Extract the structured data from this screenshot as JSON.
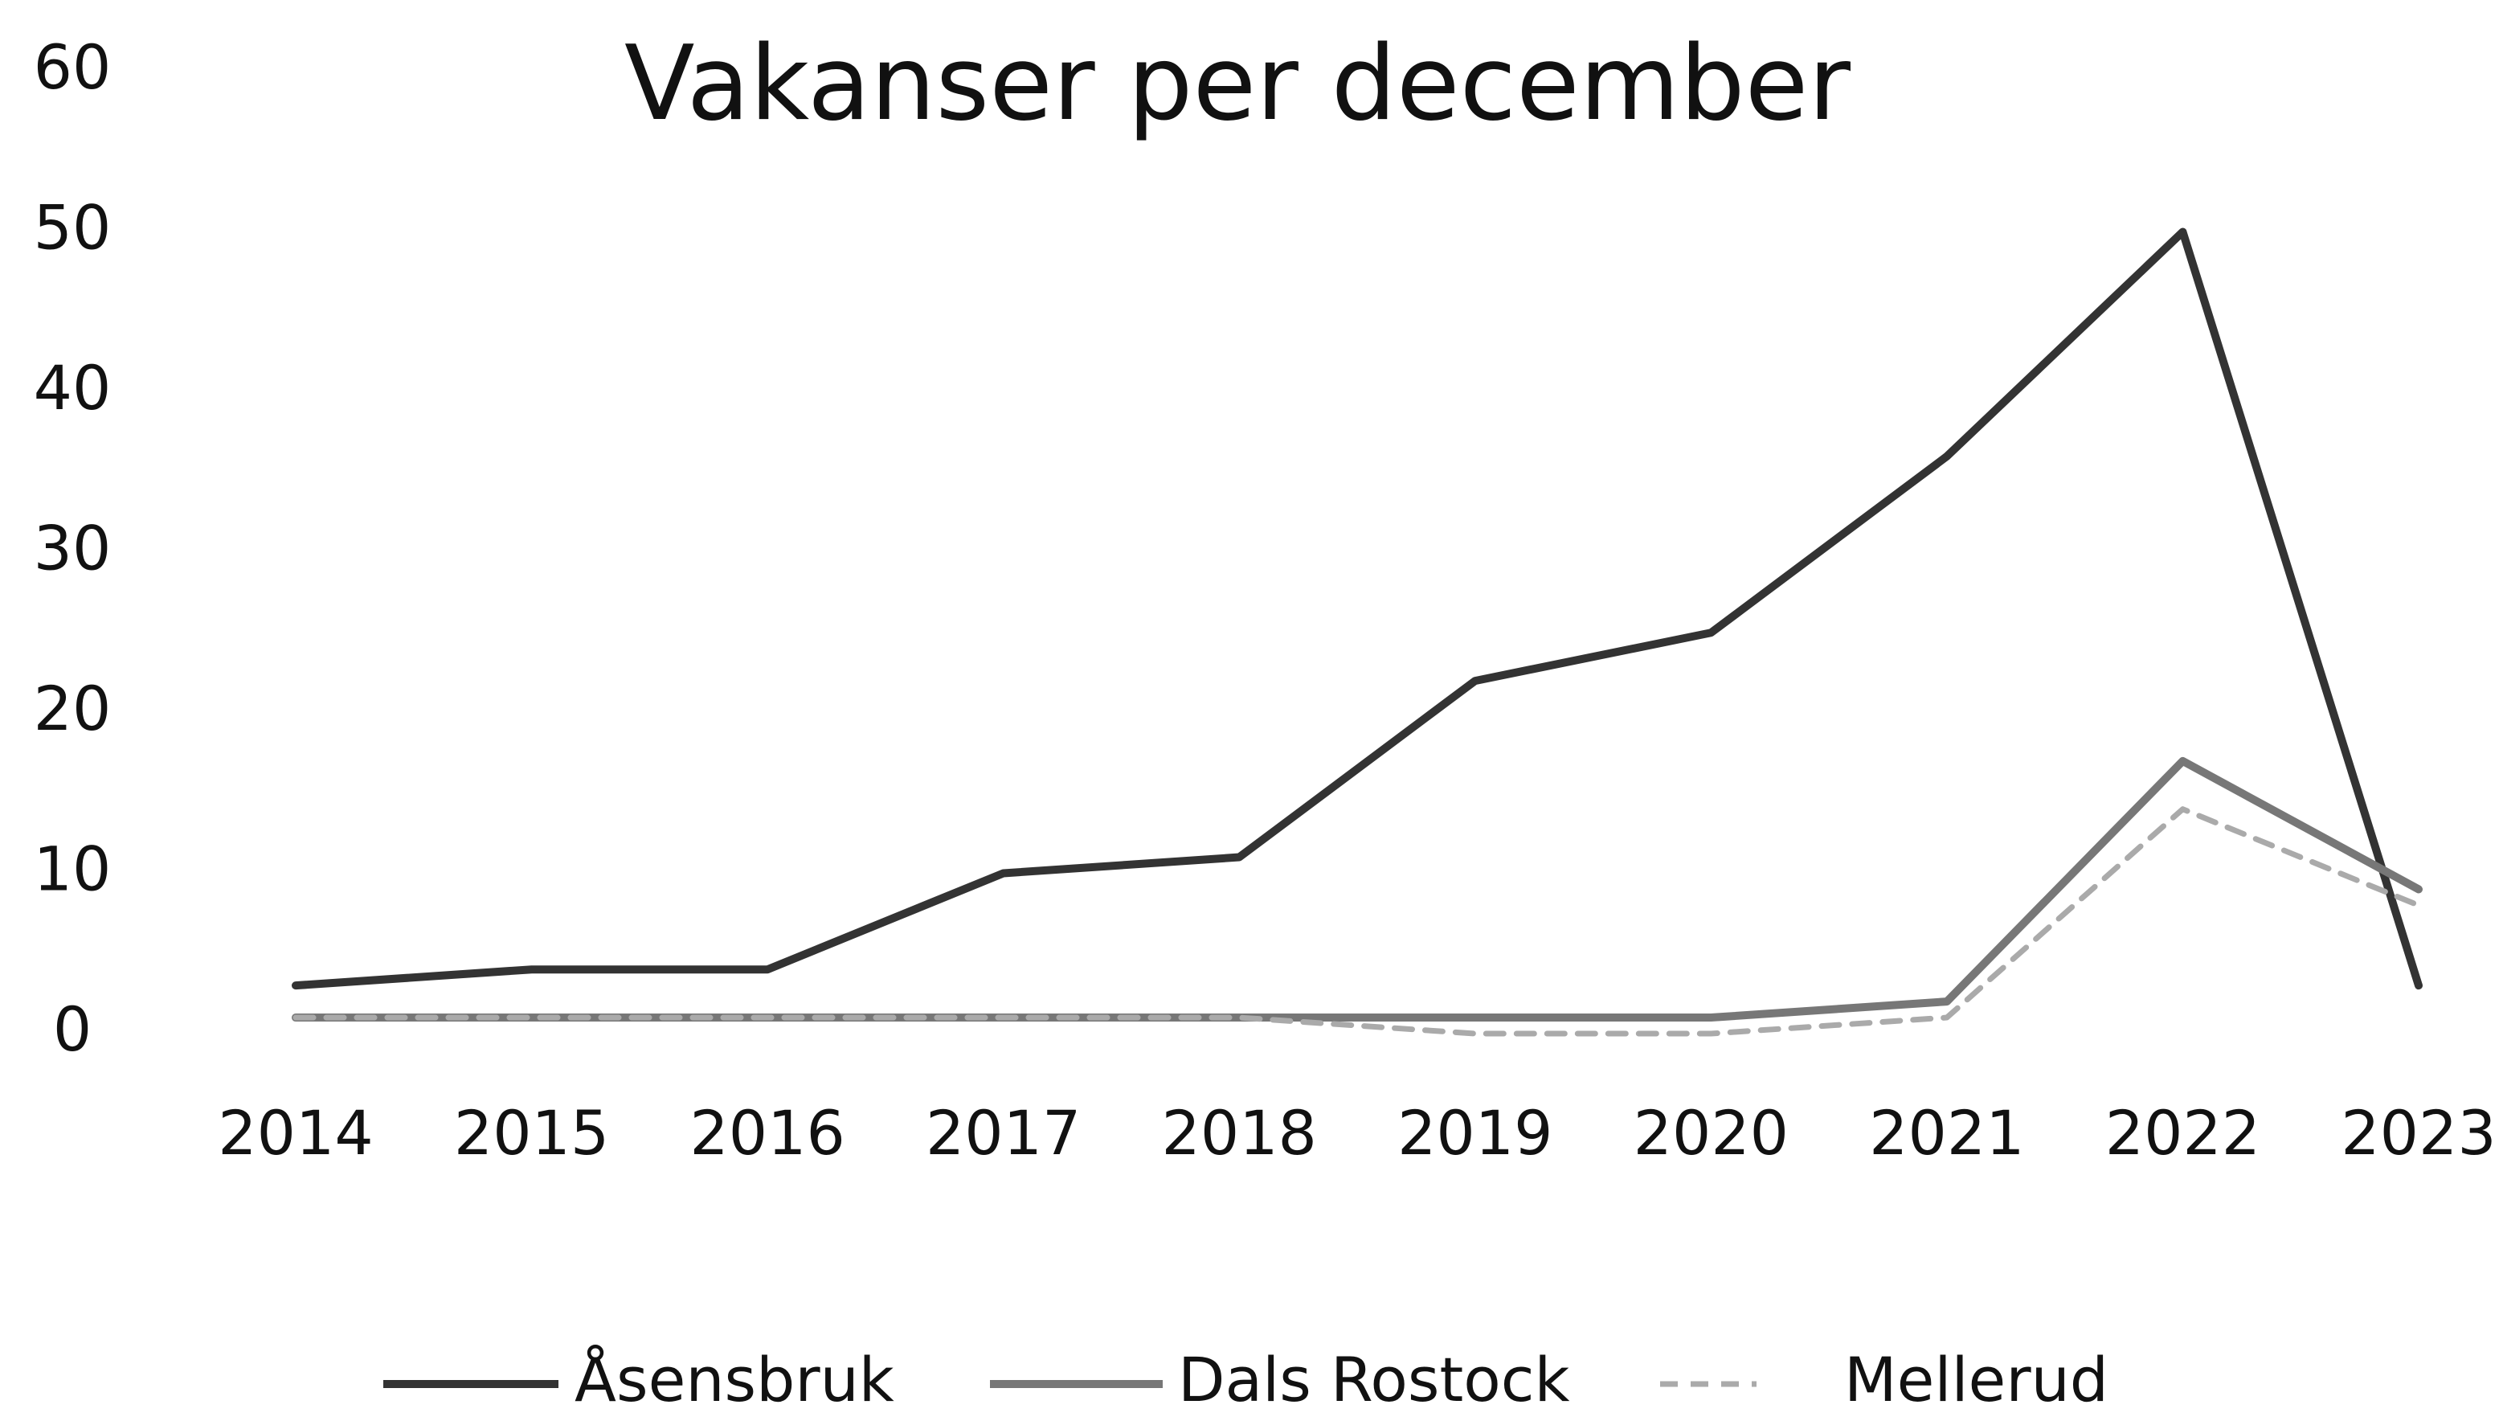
{
  "chart_data": {
    "type": "line",
    "title": "Vakanser per december",
    "categories": [
      "2014",
      "2015",
      "2016",
      "2017",
      "2018",
      "2019",
      "2020",
      "2021",
      "2022",
      "2023"
    ],
    "series": [
      {
        "name": "Åsensbruk",
        "color": "#333333",
        "style": "solid",
        "values": [
          3,
          4,
          4,
          10,
          11,
          22,
          25,
          36,
          50,
          3
        ]
      },
      {
        "name": "Dals Rostock",
        "color": "#777777",
        "style": "solid",
        "values": [
          1,
          1,
          1,
          1,
          1,
          1,
          1,
          2,
          17,
          9
        ]
      },
      {
        "name": "Mellerud",
        "color": "#aaaaaa",
        "style": "dashed",
        "values": [
          1,
          1,
          1,
          1,
          1,
          0,
          0,
          1,
          14,
          8
        ]
      }
    ],
    "ylim": [
      0,
      60
    ],
    "yticks": [
      0,
      10,
      20,
      30,
      40,
      50,
      60
    ],
    "grid": false,
    "legend": "bottom"
  }
}
